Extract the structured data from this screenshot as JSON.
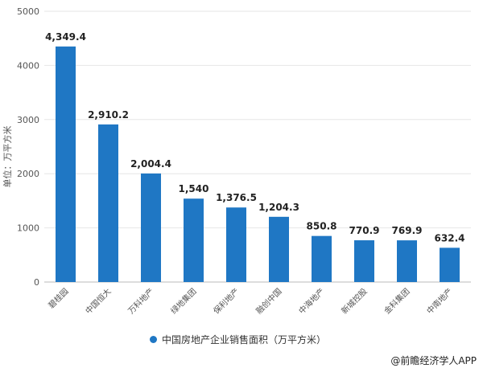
{
  "chart_data": {
    "type": "bar",
    "categories": [
      "碧桂园",
      "中国恒大",
      "万科地产",
      "绿地集团",
      "保利地产",
      "融创中国",
      "中海地产",
      "新城控股",
      "金科集团",
      "中南地产"
    ],
    "series": [
      {
        "name": "中国房地产企业销售面积（万平方米）",
        "values": [
          4349.4,
          2910.2,
          2004.4,
          1540,
          1376.5,
          1204.3,
          850.8,
          770.9,
          769.9,
          632.4
        ]
      }
    ],
    "value_labels": [
      "4,349.4",
      "2,910.2",
      "2,004.4",
      "1,540",
      "1,376.5",
      "1,204.3",
      "850.8",
      "770.9",
      "769.9",
      "632.4"
    ],
    "ylabel": "单位：万平方米",
    "ylim": [
      0,
      5000
    ],
    "yticks": [
      0,
      1000,
      2000,
      3000,
      4000,
      5000
    ],
    "grid": true,
    "legend_position": "bottom",
    "bar_color": "#1f77c4"
  },
  "credit": "@前瞻经济学人APP"
}
